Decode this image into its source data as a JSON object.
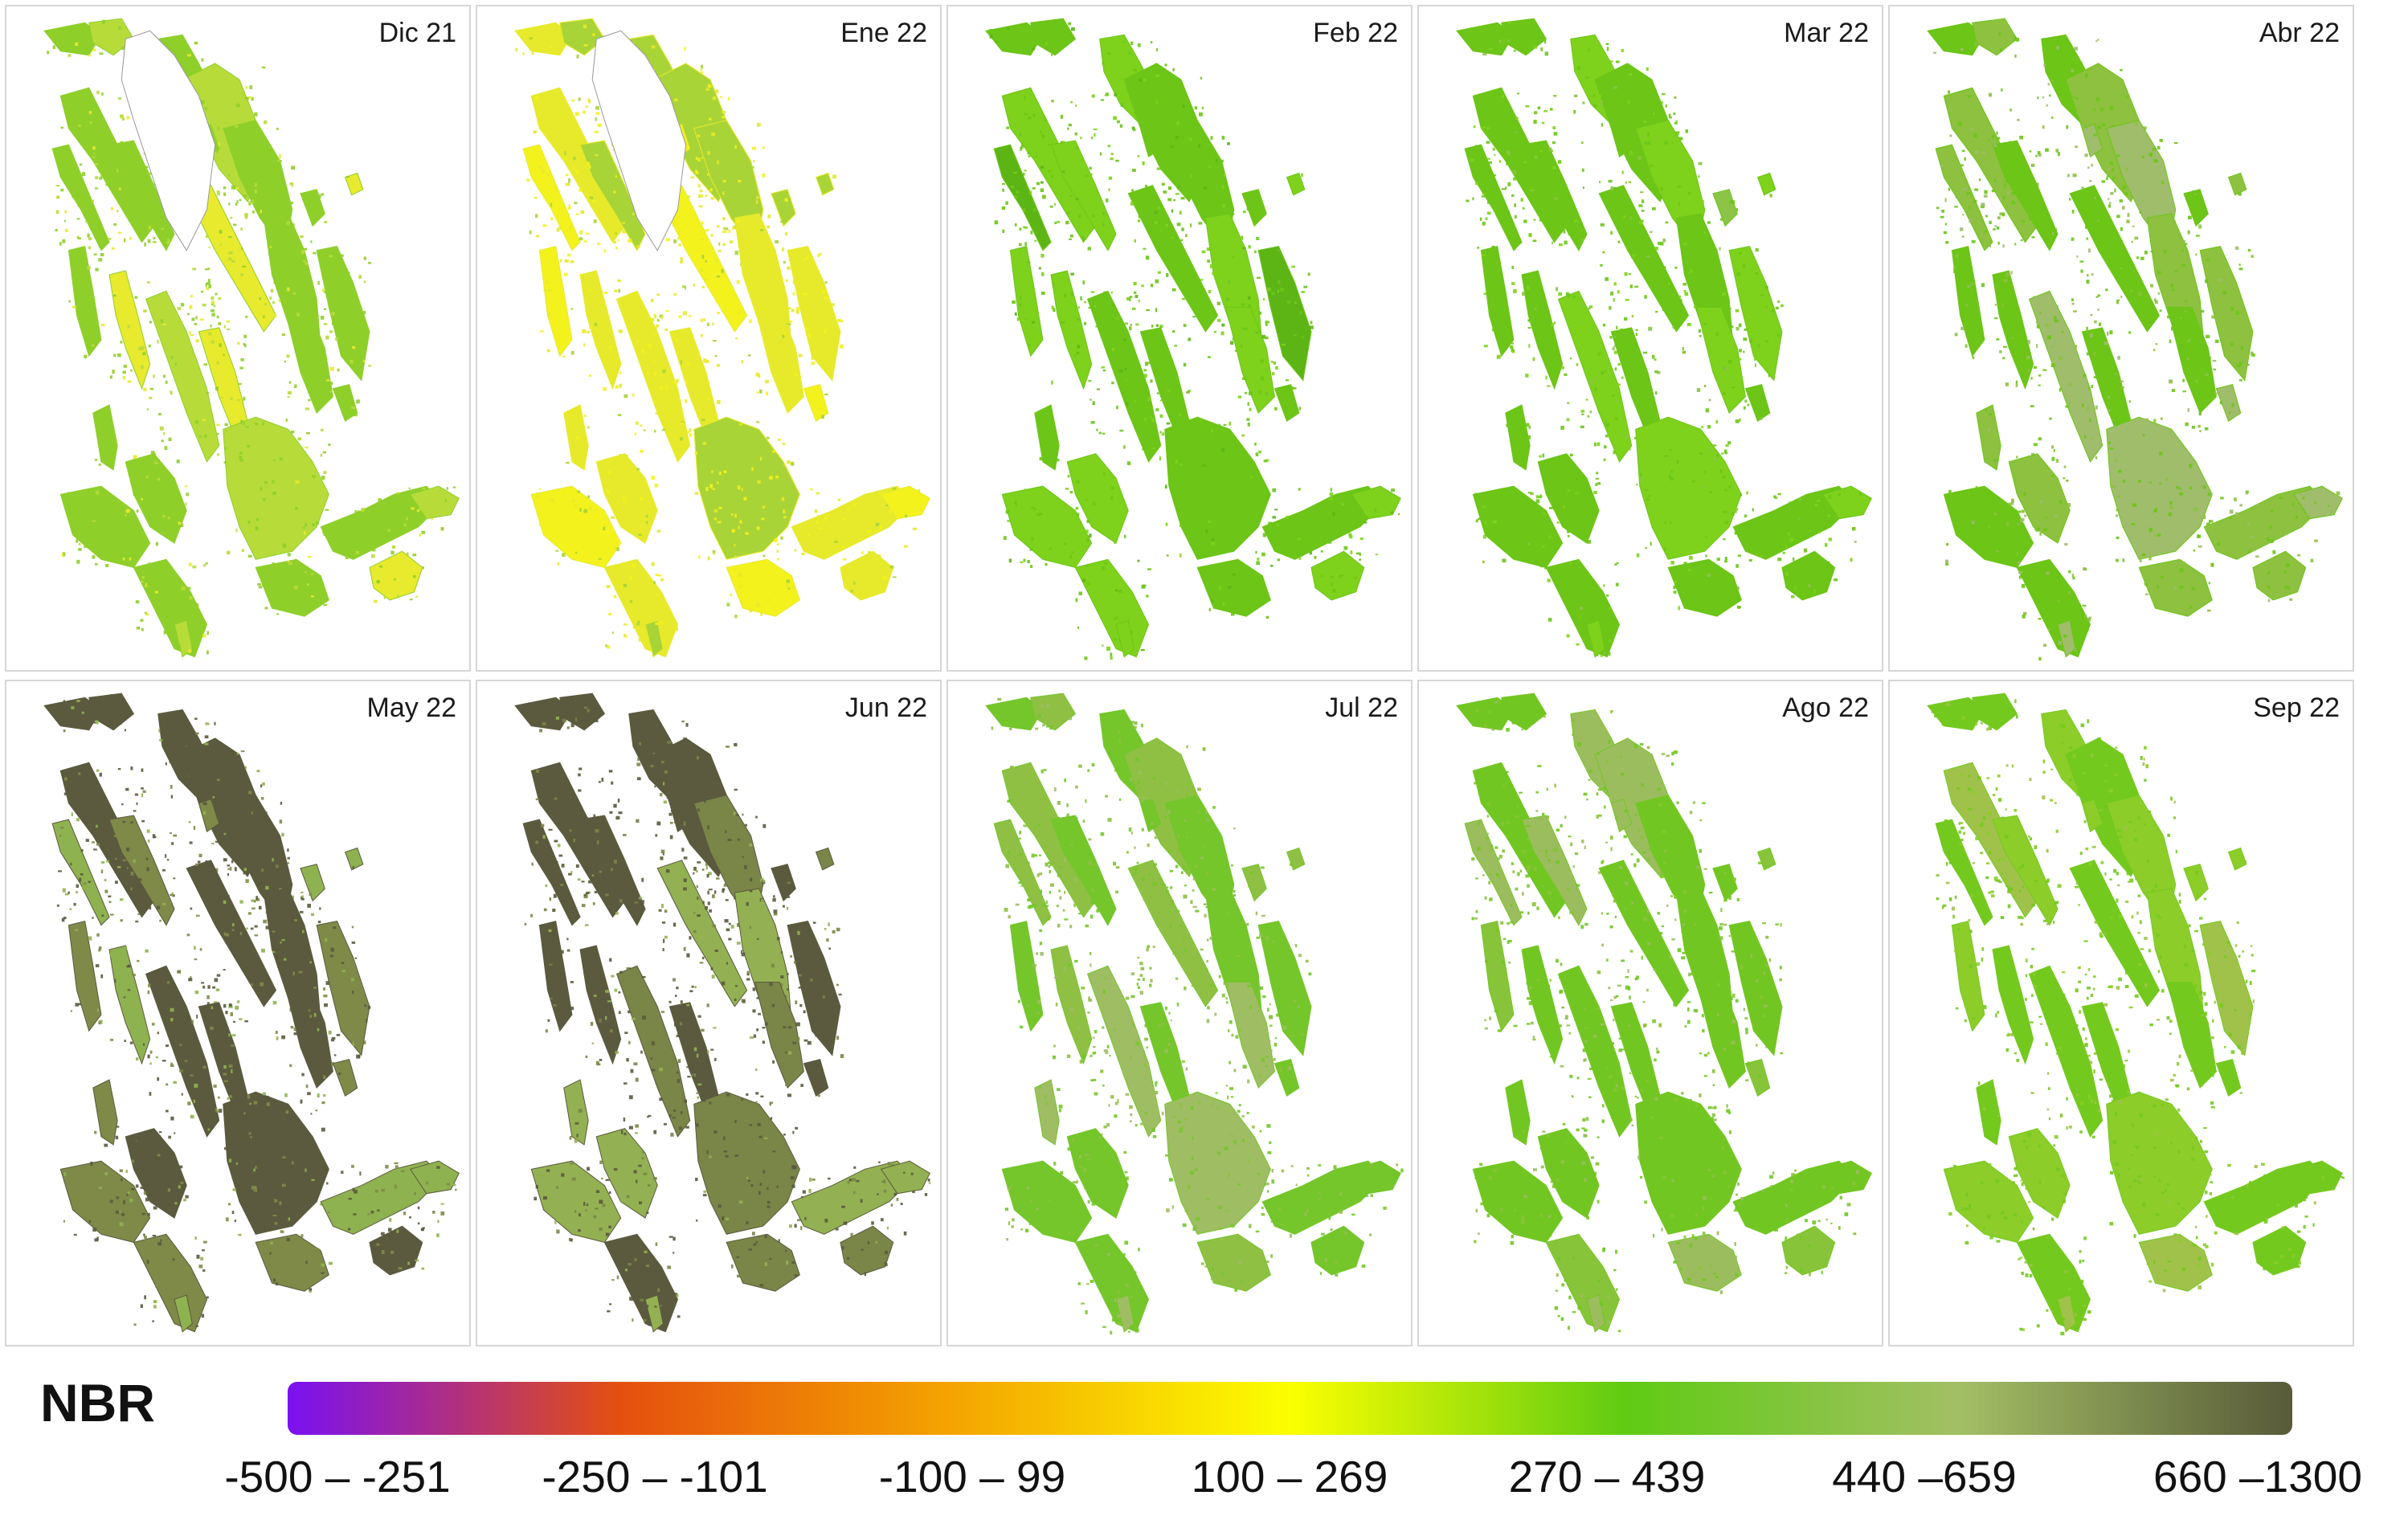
{
  "panels": [
    {
      "label": "Dic 21",
      "colors": [
        "#8fcf2a",
        "#b7dc3a",
        "#e8ea2e"
      ],
      "weights": [
        0.55,
        0.3,
        0.15
      ],
      "missing": true
    },
    {
      "label": "Ene 22",
      "colors": [
        "#e6ea2a",
        "#f4f21c",
        "#a9d437"
      ],
      "weights": [
        0.45,
        0.35,
        0.2
      ],
      "missing": true
    },
    {
      "label": "Feb 22",
      "colors": [
        "#6cc517",
        "#7ed21b",
        "#5cb515"
      ],
      "weights": [
        0.6,
        0.3,
        0.1
      ],
      "missing": false
    },
    {
      "label": "Mar 22",
      "colors": [
        "#6cc517",
        "#7ed21b",
        "#8cc447"
      ],
      "weights": [
        0.6,
        0.3,
        0.1
      ],
      "missing": false
    },
    {
      "label": "Abr 22",
      "colors": [
        "#6cc517",
        "#8dc13f",
        "#9fbd6a"
      ],
      "weights": [
        0.55,
        0.3,
        0.15
      ],
      "missing": false
    },
    {
      "label": "May 22",
      "colors": [
        "#5b5a3e",
        "#7f8a49",
        "#8fb250"
      ],
      "weights": [
        0.5,
        0.3,
        0.2
      ],
      "missing": false
    },
    {
      "label": "Jun 22",
      "colors": [
        "#5b5a3e",
        "#7a8548",
        "#93b152"
      ],
      "weights": [
        0.55,
        0.3,
        0.15
      ],
      "missing": false
    },
    {
      "label": "Jul 22",
      "colors": [
        "#74c62a",
        "#8fc044",
        "#9fbd63"
      ],
      "weights": [
        0.55,
        0.3,
        0.15
      ],
      "missing": false
    },
    {
      "label": "Ago 22",
      "colors": [
        "#72c622",
        "#88c43a",
        "#9cbd5e"
      ],
      "weights": [
        0.55,
        0.3,
        0.15
      ],
      "missing": false
    },
    {
      "label": "Sep 22",
      "colors": [
        "#74c91e",
        "#8ccd2a",
        "#a0c24a"
      ],
      "weights": [
        0.6,
        0.3,
        0.1
      ],
      "missing": false
    }
  ],
  "legend": {
    "title": "NBR",
    "gradient": [
      "#7a10f2",
      "#e5500e",
      "#f4a500",
      "#fbff00",
      "#5fcb13",
      "#a3bf64",
      "#585a3a"
    ],
    "class_labels": [
      "-500 – -251",
      "-250 – -101",
      "-100 – 99",
      "100 – 269",
      "270 – 439",
      "440 –659",
      "660 –1300"
    ]
  }
}
